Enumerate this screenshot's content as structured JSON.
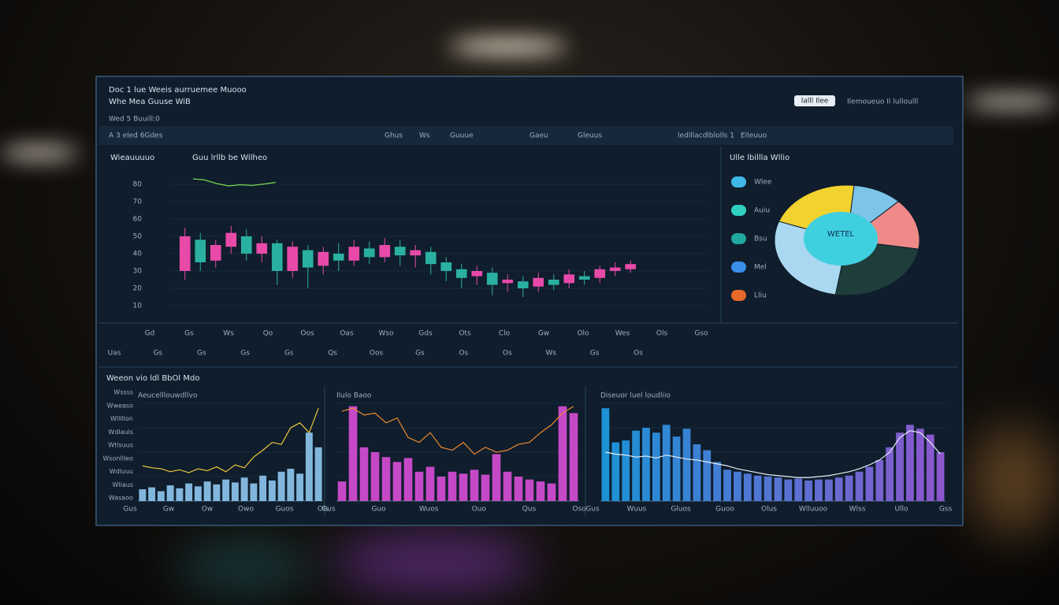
{
  "header": {
    "title": "Doc 1 lue Weeis aurruemee Muooo",
    "subtitle": "Whe Mea Guuse WiB",
    "status": "Wed 5 Buuill:0",
    "button": "lalll Ilee",
    "account": "Ilemoueuo Il lulloulll"
  },
  "toolbar": [
    "A 3 eled 6Gdes",
    "Ghus",
    "Ws",
    "Guuue",
    "Gaeu",
    "Gleuus",
    "ledlllacdlblolls 1",
    "Elleuuo"
  ],
  "section_title": "Weeon vio ldl BbOl Mdo",
  "chart_data": [
    {
      "type": "candlestick",
      "title": "Guu lrllb be Wilheo",
      "y_label": "Wieauuuuo",
      "open": [
        30,
        48,
        36,
        44,
        50,
        40,
        46,
        30,
        42,
        33,
        40,
        36,
        43,
        38,
        44,
        39,
        41,
        35,
        31,
        27,
        29,
        23,
        24,
        21,
        25,
        23,
        27,
        26,
        30,
        31
      ],
      "close": [
        50,
        35,
        45,
        52,
        40,
        46,
        30,
        44,
        32,
        41,
        36,
        44,
        38,
        45,
        39,
        42,
        34,
        30,
        26,
        30,
        22,
        25,
        20,
        26,
        22,
        28,
        25,
        31,
        32,
        34
      ],
      "high": [
        55,
        52,
        48,
        56,
        54,
        50,
        48,
        47,
        45,
        44,
        46,
        48,
        47,
        49,
        48,
        45,
        44,
        38,
        34,
        33,
        32,
        28,
        27,
        29,
        28,
        31,
        30,
        33,
        35,
        36
      ],
      "low": [
        25,
        30,
        32,
        40,
        36,
        35,
        22,
        26,
        20,
        28,
        30,
        33,
        34,
        35,
        33,
        32,
        28,
        24,
        20,
        22,
        16,
        18,
        15,
        18,
        19,
        20,
        22,
        23,
        27,
        29
      ],
      "up_color": "#e84aa9",
      "down_color": "#2ab0a0",
      "ylim": [
        0,
        100
      ],
      "yticks": [
        80,
        70,
        60,
        50,
        40,
        30,
        20,
        10
      ],
      "grid": true,
      "x_labels": [
        "Gd",
        "Gs",
        "Ws",
        "Qo",
        "Oos",
        "Oas",
        "Wso",
        "Gds",
        "Ots",
        "Clo",
        "Gw",
        "Olo",
        "Wes",
        "Ols",
        "Gso"
      ],
      "x_labels_2": [
        "Uas",
        "Gs",
        "Gs",
        "Gs",
        "Gs",
        "Qs",
        "Oos",
        "Gs",
        "Os",
        "Os",
        "Ws",
        "Gs",
        "Os"
      ],
      "inset": {
        "color": "#7ed957",
        "ylim": [
          0,
          100
        ],
        "values": [
          60,
          55,
          40,
          30,
          35,
          32,
          38,
          45
        ]
      }
    },
    {
      "type": "pie",
      "title": "Ulle lbillla Wllio",
      "center_label": "WETEL",
      "categories": [
        "Wlee",
        "Auiu",
        "Bsu",
        "Mel",
        "Lliu"
      ],
      "values": [
        21,
        11,
        15,
        25,
        28
      ],
      "colors": [
        "#f2d22e",
        "#7cc4e8",
        "#f08a88",
        "#1f3d3a",
        "#a9d8f0"
      ],
      "legend_colors": [
        "#3fb8e8",
        "#2fd0c0",
        "#1fa8a0",
        "#3a8ee8",
        "#e86a2a"
      ]
    },
    {
      "type": "combo",
      "title": "Aeucelllouwdllvo",
      "ylim": [
        0,
        100
      ],
      "grid": true,
      "y_labels": [
        "Wssss",
        "Wweaso",
        "Wlllllon",
        "Wdlauls",
        "Wtlsuus",
        "Wsonllleo",
        "Wdluuu",
        "Wliaus",
        "Wasaoo"
      ],
      "x_labels": [
        "Gus",
        "Gw",
        "Ow",
        "Owo",
        "Guos",
        "Ols"
      ],
      "series": [
        {
          "type": "bar",
          "color": "#8fc8f0",
          "values": [
            12,
            14,
            10,
            16,
            13,
            18,
            15,
            20,
            17,
            22,
            19,
            24,
            18,
            26,
            21,
            30,
            33,
            28,
            70,
            55
          ]
        },
        {
          "type": "line",
          "color": "#f0c93a",
          "values": [
            36,
            34,
            33,
            30,
            32,
            29,
            33,
            31,
            35,
            30,
            37,
            34,
            45,
            52,
            60,
            58,
            75,
            80,
            70,
            95
          ]
        }
      ]
    },
    {
      "type": "combo",
      "title": "Ilulo Baoo",
      "ylim": [
        0,
        100
      ],
      "grid": true,
      "x_labels": [
        "Gus",
        "Guo",
        "Wuos",
        "Ouo",
        "Qus",
        "Oso"
      ],
      "series": [
        {
          "type": "bar",
          "color": "#d94fd8",
          "values": [
            20,
            97,
            55,
            50,
            45,
            40,
            44,
            30,
            35,
            25,
            30,
            28,
            32,
            27,
            48,
            30,
            25,
            22,
            20,
            18,
            97,
            90
          ]
        },
        {
          "type": "line",
          "color": "#f08a30",
          "values": [
            92,
            95,
            88,
            90,
            80,
            85,
            65,
            60,
            70,
            55,
            52,
            60,
            48,
            55,
            50,
            52,
            58,
            60,
            70,
            78,
            90,
            97
          ]
        }
      ]
    },
    {
      "type": "combo",
      "title": "Diseuor luel loudliio",
      "ylim": [
        0,
        100
      ],
      "grid": true,
      "x_labels": [
        "Gus",
        "Wuus",
        "Gluos",
        "Guoo",
        "Olus",
        "Wlluuoo",
        "Wlss",
        "Ullo",
        "Gss"
      ],
      "series": [
        {
          "type": "bar",
          "colors": [
            "#1e9fe8",
            "#9a5ee0"
          ],
          "values": [
            95,
            60,
            62,
            72,
            75,
            70,
            78,
            66,
            74,
            58,
            52,
            40,
            32,
            30,
            28,
            26,
            25,
            24,
            22,
            23,
            21,
            22,
            22,
            24,
            26,
            30,
            35,
            42,
            55,
            70,
            78,
            74,
            68,
            50
          ]
        },
        {
          "type": "line",
          "color": "#e6eef5",
          "values": [
            50,
            48,
            47,
            45,
            46,
            44,
            47,
            45,
            43,
            42,
            40,
            38,
            36,
            33,
            31,
            29,
            27,
            26,
            25,
            24,
            24,
            25,
            26,
            28,
            30,
            33,
            37,
            42,
            50,
            65,
            72,
            70,
            60,
            48
          ]
        }
      ]
    }
  ]
}
